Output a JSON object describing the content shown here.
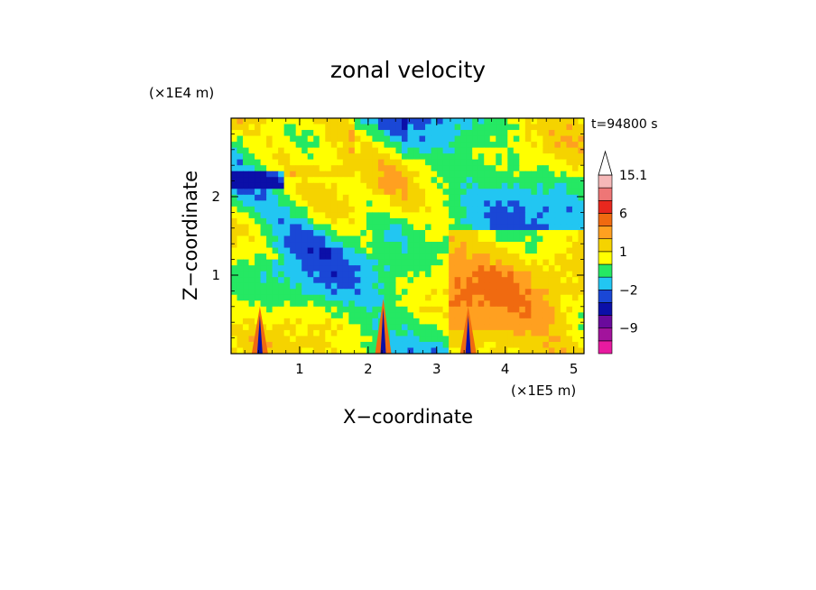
{
  "chart_data": {
    "type": "heatmap",
    "title": "zonal velocity",
    "xlabel": "X−coordinate",
    "ylabel": "Z−coordinate",
    "x_unit_label": "(×1E5 m)",
    "y_unit_label": "(×1E4 m)",
    "time_label": "t=94800 s",
    "xlim": [
      0,
      5.15
    ],
    "ylim": [
      0,
      3.0
    ],
    "x_ticks": [
      {
        "value": 1,
        "label": "1"
      },
      {
        "value": 2,
        "label": "2"
      },
      {
        "value": 3,
        "label": "3"
      },
      {
        "value": 4,
        "label": "4"
      },
      {
        "value": 5,
        "label": "5"
      }
    ],
    "y_ticks": [
      {
        "value": 1,
        "label": "1"
      },
      {
        "value": 2,
        "label": "2"
      }
    ],
    "colorbar": {
      "labels": [
        {
          "value": 15.1,
          "label": "15.1"
        },
        {
          "value": 6,
          "label": "6"
        },
        {
          "value": 1,
          "label": "1"
        },
        {
          "value": -2,
          "label": "−2"
        },
        {
          "value": -9,
          "label": "−9"
        }
      ],
      "colors": [
        "#e81aa0",
        "#a2139c",
        "#6a0a9c",
        "#0b0fa8",
        "#1a47d6",
        "#22c6f2",
        "#25e863",
        "#ffff00",
        "#f5d300",
        "#ffa020",
        "#f06a10",
        "#e8281e",
        "#ee7676",
        "#f6b8b8"
      ],
      "extend": "max"
    },
    "levels": [
      -12,
      -9,
      -6,
      -4,
      -2,
      -1,
      0,
      1,
      2,
      4,
      6,
      9,
      12,
      15.1
    ],
    "field_palette": [
      "#0b0fa8",
      "#1a47d6",
      "#22c6f2",
      "#25e863",
      "#ffff00",
      "#f5d300",
      "#ffa020",
      "#f06a10",
      "#e8281e"
    ]
  }
}
